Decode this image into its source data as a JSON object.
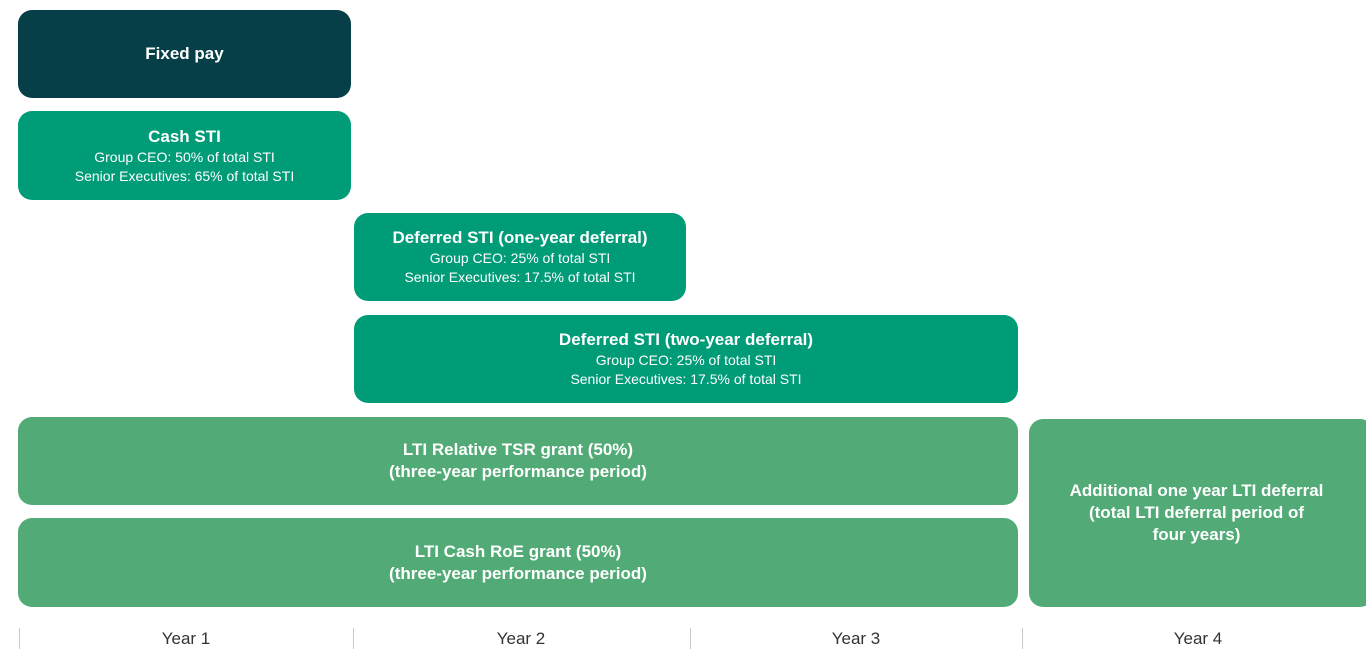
{
  "blocks": [
    {
      "title": [
        "Fixed pay"
      ],
      "details": []
    },
    {
      "title": [
        "Cash STI"
      ],
      "details": [
        "Group CEO: 50% of total STI",
        "Senior Executives: 65% of total STI"
      ]
    },
    {
      "title": [
        "Deferred STI (one-year deferral)"
      ],
      "details": [
        "Group CEO: 25% of total STI",
        "Senior Executives: 17.5% of total STI"
      ]
    },
    {
      "title": [
        "Deferred STI (two-year deferral)"
      ],
      "details": [
        "Group CEO: 25% of total STI",
        "Senior Executives: 17.5% of total STI"
      ]
    },
    {
      "title": [
        "LTI Relative TSR grant (50%)",
        "(three-year performance period)"
      ],
      "details": []
    },
    {
      "title": [
        "LTI Cash RoE grant (50%)",
        "(three-year performance period)"
      ],
      "details": []
    },
    {
      "title": [
        "Additional one year LTI deferral",
        "(total LTI deferral period of",
        "four years)"
      ],
      "details": []
    }
  ],
  "years": [
    "Year 1",
    "Year 2",
    "Year 3",
    "Year 4"
  ]
}
